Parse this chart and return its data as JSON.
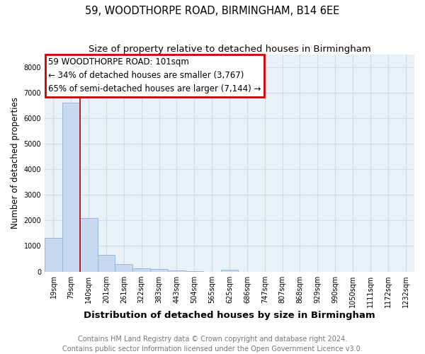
{
  "title": "59, WOODTHORPE ROAD, BIRMINGHAM, B14 6EE",
  "subtitle": "Size of property relative to detached houses in Birmingham",
  "xlabel": "Distribution of detached houses by size in Birmingham",
  "ylabel": "Number of detached properties",
  "bar_labels": [
    "19sqm",
    "79sqm",
    "140sqm",
    "201sqm",
    "261sqm",
    "322sqm",
    "383sqm",
    "443sqm",
    "504sqm",
    "565sqm",
    "625sqm",
    "686sqm",
    "747sqm",
    "807sqm",
    "868sqm",
    "929sqm",
    "990sqm",
    "1050sqm",
    "1111sqm",
    "1172sqm",
    "1232sqm"
  ],
  "bar_values": [
    1320,
    6600,
    2080,
    650,
    300,
    140,
    100,
    55,
    25,
    0,
    85,
    0,
    0,
    0,
    0,
    0,
    0,
    0,
    0,
    0,
    0
  ],
  "bar_color": "#c6d9f0",
  "bar_edge_color": "#9ab8d8",
  "grid_color": "#d0dcea",
  "background_color": "#e8f0f8",
  "red_line_x": 1.5,
  "annotation_text": "59 WOODTHORPE ROAD: 101sqm\n← 34% of detached houses are smaller (3,767)\n65% of semi-detached houses are larger (7,144) →",
  "annotation_box_color": "#cc0000",
  "ylim": [
    0,
    8500
  ],
  "yticks": [
    0,
    1000,
    2000,
    3000,
    4000,
    5000,
    6000,
    7000,
    8000
  ],
  "footer_line1": "Contains HM Land Registry data © Crown copyright and database right 2024.",
  "footer_line2": "Contains public sector information licensed under the Open Government Licence v3.0.",
  "title_fontsize": 10.5,
  "subtitle_fontsize": 9.5,
  "tick_fontsize": 7,
  "ylabel_fontsize": 8.5,
  "xlabel_fontsize": 9.5,
  "annotation_fontsize": 8.5,
  "footer_fontsize": 7
}
